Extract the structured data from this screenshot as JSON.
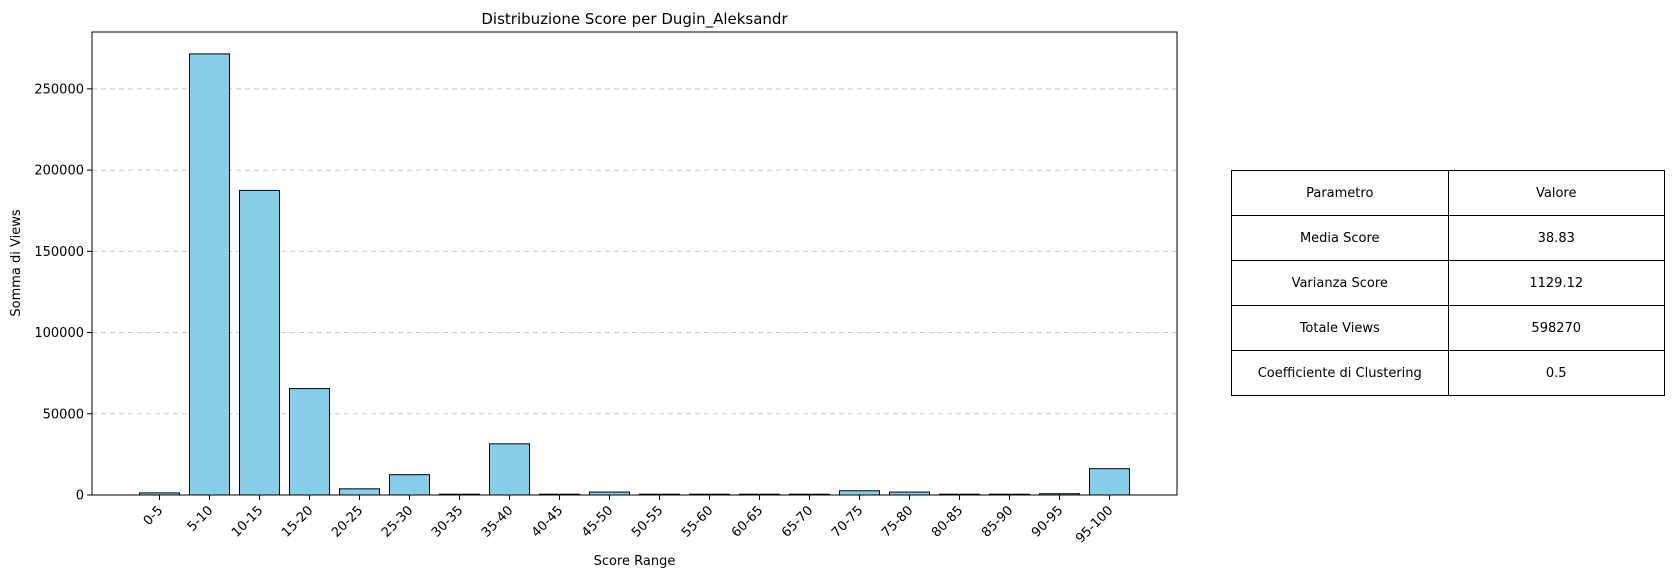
{
  "chart_data": {
    "type": "bar",
    "title": "Distribuzione Score per Dugin_Aleksandr",
    "xlabel": "Score Range",
    "ylabel": "Somma di Views",
    "categories": [
      "0-5",
      "5-10",
      "10-15",
      "15-20",
      "20-25",
      "25-30",
      "30-35",
      "35-40",
      "40-45",
      "45-50",
      "50-55",
      "55-60",
      "60-65",
      "65-70",
      "70-75",
      "75-80",
      "80-85",
      "85-90",
      "90-95",
      "95-100"
    ],
    "values": [
      1300,
      271500,
      187500,
      65500,
      3800,
      12500,
      300,
      31500,
      200,
      1800,
      100,
      100,
      100,
      100,
      2600,
      1800,
      100,
      100,
      800,
      16200
    ],
    "ylim": [
      0,
      285000
    ],
    "yticks": [
      0,
      50000,
      100000,
      150000,
      200000,
      250000
    ],
    "ytick_labels": [
      "0",
      "50000",
      "100000",
      "150000",
      "200000",
      "250000"
    ],
    "grid": "y-dashed",
    "bar_color": "#87CEEB",
    "edge_color": "#000000"
  },
  "table": {
    "header": [
      "Parametro",
      "Valore"
    ],
    "rows": [
      [
        "Media Score",
        "38.83"
      ],
      [
        "Varianza Score",
        "1129.12"
      ],
      [
        "Totale Views",
        "598270"
      ],
      [
        "Coefficiente di Clustering",
        "0.5"
      ]
    ]
  }
}
